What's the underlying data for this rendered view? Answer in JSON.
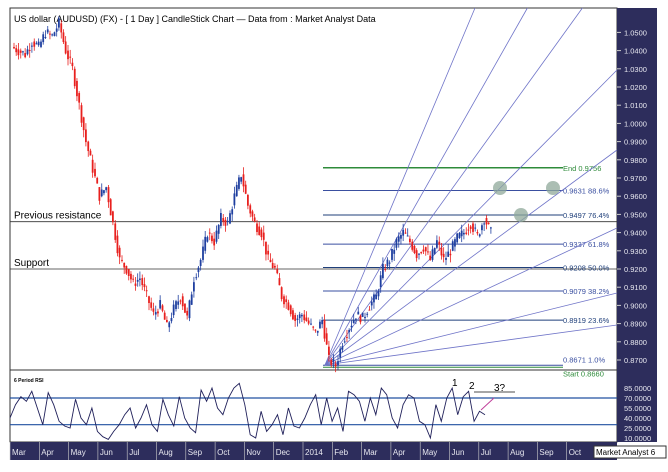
{
  "chart_data": {
    "type": "candlestick",
    "title": "US dollar (AUDUSD) (FX) -  [ 1 Day ] CandleStick Chart — Data from : Market Analyst Data",
    "watermark": "Market Analyst 6",
    "price_axis": {
      "ylim": [
        0.862,
        1.065
      ],
      "ticks": [
        "1.0500",
        "1.0400",
        "1.0300",
        "1.0200",
        "1.0100",
        "1.0000",
        "0.9900",
        "0.9800",
        "0.9700",
        "0.9600",
        "0.9500",
        "0.9400",
        "0.9300",
        "0.9200",
        "0.9100",
        "0.9000",
        "0.8900",
        "0.8800",
        "0.8700"
      ]
    },
    "x_ticks": [
      "Mar",
      "Apr",
      "May",
      "Jun",
      "Jul",
      "Aug",
      "Sep",
      "Oct",
      "Nov",
      "Dec",
      "2014",
      "Feb",
      "Mar",
      "Apr",
      "May",
      "Jun",
      "Jul",
      "Aug",
      "Sep",
      "Oct"
    ],
    "weekly_closes": [
      1.04,
      1.038,
      1.045,
      1.042,
      1.05,
      1.048,
      1.055,
      1.04,
      1.03,
      1.01,
      0.99,
      0.975,
      0.96,
      0.965,
      0.945,
      0.925,
      0.92,
      0.912,
      0.915,
      0.905,
      0.895,
      0.9,
      0.888,
      0.898,
      0.905,
      0.893,
      0.915,
      0.925,
      0.94,
      0.935,
      0.948,
      0.945,
      0.96,
      0.972,
      0.955,
      0.945,
      0.94,
      0.925,
      0.92,
      0.905,
      0.9,
      0.892,
      0.895,
      0.89,
      0.885,
      0.892,
      0.87,
      0.867,
      0.88,
      0.888,
      0.895,
      0.893,
      0.9,
      0.905,
      0.92,
      0.925,
      0.935,
      0.94,
      0.935,
      0.928,
      0.932,
      0.925,
      0.935,
      0.925,
      0.93,
      0.937,
      0.94,
      0.945,
      0.938,
      0.948,
      0.94
    ],
    "horizontal_lines": [
      {
        "label": "Previous resistance",
        "value": 0.946
      },
      {
        "label": "Support",
        "value": 0.92
      }
    ],
    "fib_levels": [
      {
        "label": "End 0.9756",
        "value": 0.9756,
        "color": "#2e8b3a"
      },
      {
        "label": "0.9631 88.6%",
        "value": 0.9631,
        "color": "#3a4fa0"
      },
      {
        "label": "0.9497 76.4%",
        "value": 0.9497,
        "color": "#1f3f7a"
      },
      {
        "label": "0.9337 61.8%",
        "value": 0.9337,
        "color": "#3a4fa0"
      },
      {
        "label": "0.9208 50.0%",
        "value": 0.9208,
        "color": "#1f3f7a"
      },
      {
        "label": "0.9079 38.2%",
        "value": 0.9079,
        "color": "#3a4fa0"
      },
      {
        "label": "0.8919 23.6%",
        "value": 0.8919,
        "color": "#1f3f7a"
      },
      {
        "label": "0.8671 1.0%",
        "value": 0.8671,
        "color": "#3a4fa0"
      },
      {
        "label": "Start 0.8660",
        "value": 0.866,
        "color": "#2e8b3a"
      }
    ],
    "rsi": {
      "label": "6 Period RSI",
      "ticks": [
        "85.0000",
        "70.0000",
        "55.0000",
        "40.0000",
        "25.0000",
        "10.0000"
      ],
      "bands": [
        70,
        30
      ],
      "values": [
        40,
        60,
        72,
        65,
        80,
        55,
        30,
        78,
        60,
        35,
        28,
        25,
        68,
        40,
        30,
        55,
        20,
        12,
        8,
        20,
        30,
        45,
        55,
        25,
        40,
        60,
        30,
        20,
        68,
        45,
        28,
        72,
        40,
        25,
        18,
        82,
        65,
        85,
        55,
        45,
        70,
        85,
        92,
        60,
        15,
        10,
        50,
        20,
        30,
        45,
        15,
        55,
        28,
        25,
        40,
        60,
        75,
        30,
        70,
        35,
        55,
        20,
        80,
        75,
        65,
        35,
        70,
        45,
        85,
        75,
        40,
        25,
        60,
        75,
        70,
        35,
        30,
        10,
        60,
        35,
        70,
        85,
        45,
        72,
        80,
        35,
        50,
        45
      ],
      "annotations": [
        "1",
        "2",
        "3?"
      ]
    },
    "colors": {
      "up": "#1f3fa0",
      "down": "#e8201e",
      "axis_bg": "#2d2d5c",
      "fan": "#6f74c8",
      "circle": "#8fa89a"
    }
  }
}
